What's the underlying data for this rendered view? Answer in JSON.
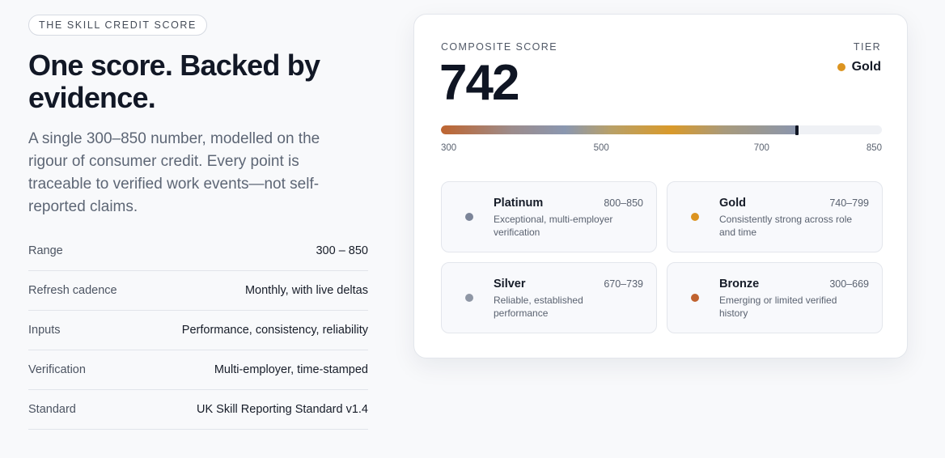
{
  "eyebrow": "THE SKILL CREDIT SCORE",
  "headline": "One score. Backed by evidence.",
  "lede": "A single 300–850 number, modelled on the rigour of consumer credit. Every point is traceable to verified work events—not self-reported claims.",
  "facts": [
    {
      "key": "Range",
      "value": "300 – 850"
    },
    {
      "key": "Refresh cadence",
      "value": "Monthly, with live deltas"
    },
    {
      "key": "Inputs",
      "value": "Performance, consistency, reliability"
    },
    {
      "key": "Verification",
      "value": "Multi-employer, time-stamped"
    },
    {
      "key": "Standard",
      "value": "UK Skill Reporting Standard v1.4"
    }
  ],
  "card": {
    "composite_label": "COMPOSITE SCORE",
    "score": "742",
    "score_value": 742,
    "scale_min": 300,
    "scale_max": 850,
    "tier_label": "TIER",
    "tier_value": "Gold",
    "tier_color": "#dc9420",
    "ticks": [
      "300",
      "500",
      "700",
      "850"
    ],
    "tick_values": [
      300,
      500,
      700,
      850
    ]
  },
  "tiers": [
    {
      "name": "Platinum",
      "range": "800–850",
      "desc": "Exceptional, multi-employer verification",
      "color": "#7c8599"
    },
    {
      "name": "Gold",
      "range": "740–799",
      "desc": "Consistently strong across role and time",
      "color": "#dc9420"
    },
    {
      "name": "Silver",
      "range": "670–739",
      "desc": "Reliable, established performance",
      "color": "#8f97a5"
    },
    {
      "name": "Bronze",
      "range": "300–669",
      "desc": "Emerging or limited verified history",
      "color": "#c0622f"
    }
  ]
}
